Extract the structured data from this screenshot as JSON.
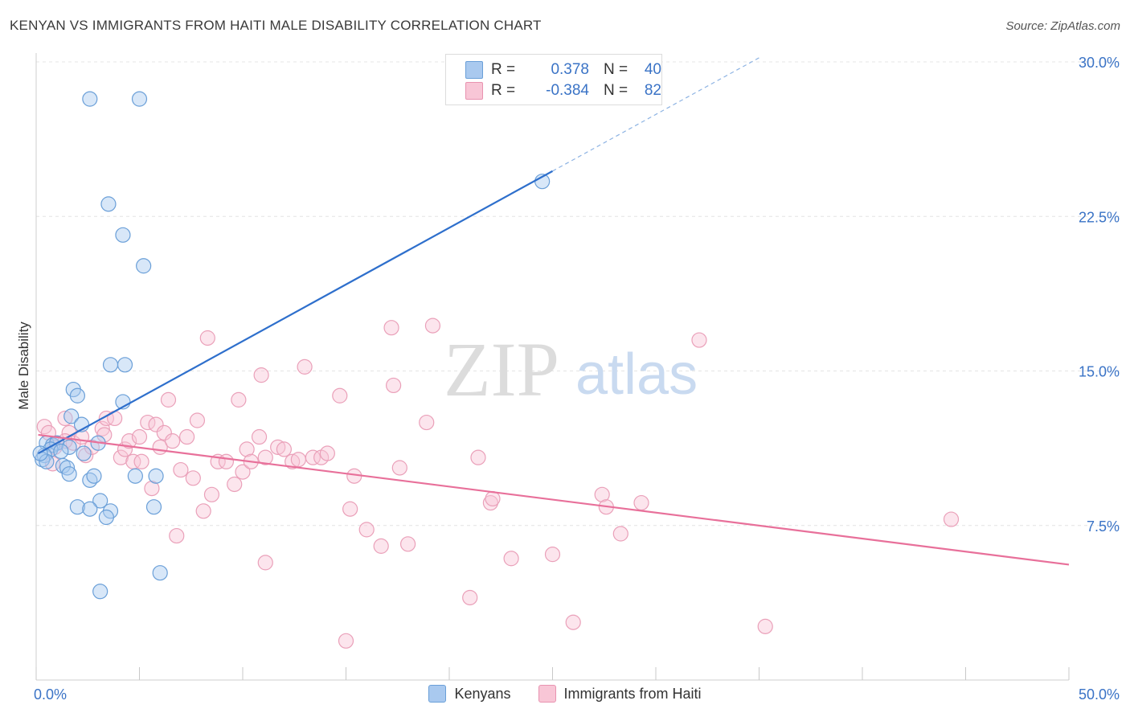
{
  "header": {
    "title": "KENYAN VS IMMIGRANTS FROM HAITI MALE DISABILITY CORRELATION CHART",
    "source": "Source: ZipAtlas.com"
  },
  "watermark": {
    "zip": "ZIP",
    "atlas": "atlas"
  },
  "legend": {
    "rows": [
      {
        "r_label": "R =",
        "r_value": "0.378",
        "n_label": "N =",
        "n_value": "40",
        "color": "#a9c9ef",
        "border": "#6a9fd8"
      },
      {
        "r_label": "R =",
        "r_value": "-0.384",
        "n_label": "N =",
        "n_value": "82",
        "color": "#f8c6d6",
        "border": "#e893b0"
      }
    ]
  },
  "bottom_legend": [
    {
      "label": "Kenyans",
      "color": "#a9c9ef",
      "border": "#6a9fd8"
    },
    {
      "label": "Immigrants from Haiti",
      "color": "#f8c6d6",
      "border": "#e893b0"
    }
  ],
  "chart_data": {
    "type": "scatter",
    "title": "KENYAN VS IMMIGRANTS FROM HAITI MALE DISABILITY CORRELATION CHART",
    "xlabel": "",
    "ylabel": "Male Disability",
    "xlim": [
      0,
      50
    ],
    "ylim": [
      0,
      30
    ],
    "x_tick_labels": [
      "0.0%",
      "50.0%"
    ],
    "y_ticks": [
      7.5,
      15.0,
      22.5,
      30.0
    ],
    "y_tick_labels": [
      "7.5%",
      "15.0%",
      "22.5%",
      "30.0%"
    ],
    "grid": true,
    "colors": {
      "kenyans": "#2e6fcc",
      "haiti": "#e8709a",
      "axis_text": "#3a73c6"
    },
    "series": [
      {
        "name": "Kenyans",
        "trend": {
          "x": [
            0.1,
            25.0
          ],
          "y": [
            11.0,
            24.7
          ],
          "dashed_to": [
            35.0,
            30.2
          ]
        },
        "points": [
          [
            2.6,
            28.2
          ],
          [
            5.0,
            28.2
          ],
          [
            3.5,
            23.1
          ],
          [
            4.2,
            21.6
          ],
          [
            5.2,
            20.1
          ],
          [
            24.5,
            24.2
          ],
          [
            3.6,
            15.3
          ],
          [
            4.3,
            15.3
          ],
          [
            1.8,
            14.1
          ],
          [
            2.0,
            13.8
          ],
          [
            4.2,
            13.5
          ],
          [
            1.7,
            12.8
          ],
          [
            2.2,
            12.4
          ],
          [
            0.5,
            11.5
          ],
          [
            0.8,
            11.4
          ],
          [
            1.0,
            11.5
          ],
          [
            1.6,
            11.3
          ],
          [
            0.7,
            11.2
          ],
          [
            1.2,
            11.1
          ],
          [
            0.4,
            10.9
          ],
          [
            2.3,
            11.0
          ],
          [
            3.0,
            11.5
          ],
          [
            0.3,
            10.7
          ],
          [
            0.5,
            10.6
          ],
          [
            1.3,
            10.4
          ],
          [
            1.5,
            10.3
          ],
          [
            1.6,
            10.0
          ],
          [
            2.6,
            9.7
          ],
          [
            2.8,
            9.9
          ],
          [
            4.8,
            9.9
          ],
          [
            5.8,
            9.9
          ],
          [
            3.1,
            8.7
          ],
          [
            2.0,
            8.4
          ],
          [
            2.6,
            8.3
          ],
          [
            3.6,
            8.2
          ],
          [
            5.7,
            8.4
          ],
          [
            3.4,
            7.9
          ],
          [
            6.0,
            5.2
          ],
          [
            3.1,
            4.3
          ],
          [
            0.2,
            11.0
          ]
        ]
      },
      {
        "name": "Immigrants from Haiti",
        "trend": {
          "x": [
            0.1,
            50.0
          ],
          "y": [
            11.9,
            5.6
          ]
        },
        "points": [
          [
            0.4,
            12.3
          ],
          [
            0.6,
            12.0
          ],
          [
            1.0,
            11.5
          ],
          [
            1.4,
            12.7
          ],
          [
            1.6,
            12.0
          ],
          [
            1.8,
            11.5
          ],
          [
            0.8,
            10.5
          ],
          [
            2.4,
            10.9
          ],
          [
            2.7,
            11.3
          ],
          [
            3.2,
            12.2
          ],
          [
            3.3,
            11.9
          ],
          [
            3.4,
            12.7
          ],
          [
            3.8,
            12.7
          ],
          [
            4.1,
            10.8
          ],
          [
            4.3,
            11.2
          ],
          [
            4.5,
            11.6
          ],
          [
            4.7,
            10.6
          ],
          [
            5.1,
            10.6
          ],
          [
            5.0,
            11.8
          ],
          [
            5.4,
            12.5
          ],
          [
            5.6,
            9.3
          ],
          [
            5.8,
            12.4
          ],
          [
            6.0,
            11.3
          ],
          [
            6.2,
            12.0
          ],
          [
            6.4,
            13.6
          ],
          [
            6.6,
            11.6
          ],
          [
            6.8,
            7.0
          ],
          [
            7.0,
            10.2
          ],
          [
            7.3,
            11.8
          ],
          [
            7.6,
            9.8
          ],
          [
            7.8,
            12.6
          ],
          [
            8.1,
            8.2
          ],
          [
            8.3,
            16.6
          ],
          [
            8.5,
            9.0
          ],
          [
            8.8,
            10.6
          ],
          [
            9.2,
            10.6
          ],
          [
            9.6,
            9.5
          ],
          [
            9.8,
            13.6
          ],
          [
            10.0,
            10.1
          ],
          [
            10.2,
            11.2
          ],
          [
            10.4,
            10.6
          ],
          [
            10.8,
            11.8
          ],
          [
            10.9,
            14.8
          ],
          [
            11.1,
            10.8
          ],
          [
            11.1,
            5.7
          ],
          [
            11.7,
            11.3
          ],
          [
            12.0,
            11.2
          ],
          [
            12.4,
            10.6
          ],
          [
            12.7,
            10.7
          ],
          [
            13.0,
            15.2
          ],
          [
            13.4,
            10.8
          ],
          [
            13.8,
            10.8
          ],
          [
            14.1,
            11.0
          ],
          [
            14.7,
            13.8
          ],
          [
            15.0,
            1.9
          ],
          [
            15.2,
            8.3
          ],
          [
            15.4,
            9.9
          ],
          [
            16.0,
            7.3
          ],
          [
            16.7,
            6.5
          ],
          [
            17.3,
            14.3
          ],
          [
            17.6,
            10.3
          ],
          [
            18.0,
            6.6
          ],
          [
            18.9,
            12.5
          ],
          [
            17.2,
            17.1
          ],
          [
            19.2,
            17.2
          ],
          [
            21.0,
            4.0
          ],
          [
            21.4,
            10.8
          ],
          [
            22.0,
            8.6
          ],
          [
            22.1,
            8.8
          ],
          [
            23.0,
            5.9
          ],
          [
            25.0,
            6.1
          ],
          [
            26.0,
            2.8
          ],
          [
            27.4,
            9.0
          ],
          [
            27.6,
            8.4
          ],
          [
            28.3,
            7.1
          ],
          [
            29.3,
            8.6
          ],
          [
            32.1,
            16.5
          ],
          [
            35.3,
            2.6
          ],
          [
            44.3,
            7.8
          ],
          [
            0.9,
            11.3
          ],
          [
            1.4,
            11.6
          ],
          [
            2.2,
            11.8
          ]
        ]
      }
    ]
  }
}
